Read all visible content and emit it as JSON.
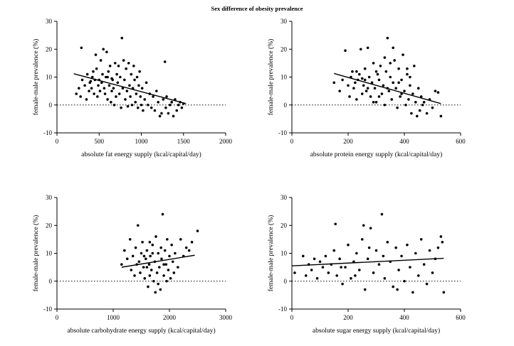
{
  "figure": {
    "title": "Sex difference of obesity prevalence"
  },
  "chart_data": [
    {
      "type": "scatter",
      "xlabel": "absolute fat energy supply (kcal/capital/day)",
      "ylabel": "female-male prevalence (%)",
      "xlim": [
        0,
        2000
      ],
      "ylim": [
        -10,
        30
      ],
      "xticks": [
        0,
        500,
        1000,
        1500,
        2000
      ],
      "yticks": [
        -10,
        0,
        10,
        20,
        30
      ],
      "reference_line": 0,
      "trend_line": [
        [
          200,
          11.2
        ],
        [
          1530,
          0.5
        ]
      ],
      "points": [
        [
          230,
          4
        ],
        [
          260,
          6
        ],
        [
          280,
          3
        ],
        [
          290,
          20.5
        ],
        [
          300,
          9
        ],
        [
          330,
          7
        ],
        [
          350,
          2
        ],
        [
          360,
          11
        ],
        [
          380,
          5
        ],
        [
          390,
          8
        ],
        [
          400,
          8.5
        ],
        [
          410,
          6
        ],
        [
          420,
          10
        ],
        [
          430,
          12
        ],
        [
          440,
          4
        ],
        [
          450,
          9
        ],
        [
          460,
          18
        ],
        [
          470,
          13
        ],
        [
          480,
          3
        ],
        [
          490,
          7
        ],
        [
          500,
          9
        ],
        [
          510,
          5
        ],
        [
          520,
          16
        ],
        [
          530,
          8
        ],
        [
          540,
          11
        ],
        [
          550,
          20
        ],
        [
          560,
          6
        ],
        [
          570,
          4
        ],
        [
          580,
          10
        ],
        [
          590,
          19
        ],
        [
          600,
          2
        ],
        [
          610,
          12
        ],
        [
          620,
          7
        ],
        [
          630,
          14
        ],
        [
          640,
          1
        ],
        [
          650,
          5
        ],
        [
          660,
          9
        ],
        [
          670,
          6
        ],
        [
          680,
          0
        ],
        [
          690,
          15
        ],
        [
          700,
          3
        ],
        [
          710,
          11
        ],
        [
          720,
          8
        ],
        [
          730,
          14
        ],
        [
          740,
          4
        ],
        [
          750,
          10
        ],
        [
          760,
          -1
        ],
        [
          770,
          24
        ],
        [
          780,
          6
        ],
        [
          790,
          16
        ],
        [
          800,
          9
        ],
        [
          810,
          2
        ],
        [
          820,
          13
        ],
        [
          830,
          5
        ],
        [
          840,
          -0.5
        ],
        [
          850,
          15
        ],
        [
          860,
          7
        ],
        [
          870,
          3
        ],
        [
          880,
          11
        ],
        [
          890,
          0
        ],
        [
          900,
          6
        ],
        [
          910,
          14
        ],
        [
          920,
          9
        ],
        [
          930,
          1
        ],
        [
          940,
          4
        ],
        [
          950,
          10
        ],
        [
          960,
          -1
        ],
        [
          970,
          7
        ],
        [
          980,
          12
        ],
        [
          990,
          3
        ],
        [
          1000,
          0
        ],
        [
          1010,
          6
        ],
        [
          1020,
          -2
        ],
        [
          1040,
          2
        ],
        [
          1060,
          8
        ],
        [
          1080,
          0
        ],
        [
          1100,
          4
        ],
        [
          1120,
          -1
        ],
        [
          1140,
          3
        ],
        [
          1160,
          -2
        ],
        [
          1180,
          5
        ],
        [
          1200,
          1
        ],
        [
          1220,
          -4
        ],
        [
          1240,
          -3
        ],
        [
          1260,
          2
        ],
        [
          1280,
          15.5
        ],
        [
          1290,
          -1
        ],
        [
          1300,
          3
        ],
        [
          1320,
          -3
        ],
        [
          1340,
          0
        ],
        [
          1360,
          1
        ],
        [
          1380,
          -4
        ],
        [
          1400,
          2
        ],
        [
          1420,
          -2
        ],
        [
          1440,
          0
        ],
        [
          1460,
          1
        ],
        [
          1480,
          -1
        ],
        [
          1500,
          0.5
        ],
        [
          650,
          9.5
        ],
        [
          600,
          10
        ]
      ]
    },
    {
      "type": "scatter",
      "xlabel": "absolute protein energy supply (kcal/capital/day)",
      "ylabel": "female-male prevalence (%)",
      "xlim": [
        0,
        600
      ],
      "ylim": [
        -10,
        30
      ],
      "xticks": [
        0,
        200,
        400,
        600
      ],
      "yticks": [
        -10,
        0,
        10,
        20,
        30
      ],
      "reference_line": 0,
      "trend_line": [
        [
          150,
          11.3
        ],
        [
          530,
          0.5
        ]
      ],
      "points": [
        [
          150,
          8
        ],
        [
          170,
          5
        ],
        [
          180,
          9
        ],
        [
          190,
          19.5
        ],
        [
          200,
          7
        ],
        [
          205,
          3
        ],
        [
          210,
          10
        ],
        [
          215,
          12
        ],
        [
          220,
          6
        ],
        [
          225,
          8
        ],
        [
          230,
          2
        ],
        [
          235,
          9
        ],
        [
          240,
          11
        ],
        [
          245,
          20
        ],
        [
          250,
          4
        ],
        [
          255,
          7
        ],
        [
          260,
          13
        ],
        [
          265,
          5
        ],
        [
          270,
          20.5
        ],
        [
          275,
          10
        ],
        [
          280,
          3
        ],
        [
          285,
          8
        ],
        [
          290,
          15
        ],
        [
          295,
          6
        ],
        [
          300,
          1
        ],
        [
          305,
          11
        ],
        [
          310,
          9
        ],
        [
          315,
          14
        ],
        [
          320,
          4
        ],
        [
          325,
          7
        ],
        [
          330,
          0
        ],
        [
          335,
          12
        ],
        [
          340,
          24
        ],
        [
          345,
          5
        ],
        [
          350,
          10
        ],
        [
          355,
          2
        ],
        [
          360,
          8
        ],
        [
          365,
          16
        ],
        [
          370,
          6
        ],
        [
          375,
          -1
        ],
        [
          380,
          13
        ],
        [
          385,
          3
        ],
        [
          390,
          9
        ],
        [
          395,
          18
        ],
        [
          400,
          5
        ],
        [
          405,
          0
        ],
        [
          410,
          11
        ],
        [
          415,
          2
        ],
        [
          420,
          7
        ],
        [
          425,
          -3
        ],
        [
          430,
          4
        ],
        [
          435,
          14
        ],
        [
          440,
          1
        ],
        [
          445,
          -4
        ],
        [
          450,
          6
        ],
        [
          455,
          -2
        ],
        [
          460,
          3
        ],
        [
          465,
          0
        ],
        [
          470,
          1
        ],
        [
          480,
          -3
        ],
        [
          490,
          2
        ],
        [
          500,
          -1
        ],
        [
          510,
          5
        ],
        [
          520,
          4.5
        ],
        [
          530,
          -4
        ],
        [
          260,
          9
        ],
        [
          300,
          12
        ],
        [
          340,
          6
        ],
        [
          380,
          8
        ],
        [
          420,
          10
        ],
        [
          230,
          12
        ],
        [
          270,
          6
        ],
        [
          310,
          3
        ],
        [
          350,
          15
        ],
        [
          390,
          4
        ],
        [
          410,
          13
        ],
        [
          360,
          20.5
        ],
        [
          290,
          1
        ],
        [
          330,
          17
        ],
        [
          250,
          9.5
        ]
      ]
    },
    {
      "type": "scatter",
      "xlabel": "absolute carbohydrate energy supply (kcal/capital/day)",
      "ylabel": "female-male prevalence (%)",
      "xlim": [
        0,
        3000
      ],
      "ylim": [
        -10,
        30
      ],
      "xticks": [
        0,
        1000,
        2000,
        3000
      ],
      "yticks": [
        -10,
        0,
        10,
        20,
        30
      ],
      "reference_line": 0,
      "trend_line": [
        [
          1150,
          5
        ],
        [
          2450,
          9.3
        ]
      ],
      "points": [
        [
          1150,
          6
        ],
        [
          1200,
          11
        ],
        [
          1250,
          8
        ],
        [
          1300,
          15
        ],
        [
          1320,
          4
        ],
        [
          1350,
          9
        ],
        [
          1380,
          2
        ],
        [
          1400,
          12
        ],
        [
          1420,
          6
        ],
        [
          1440,
          20
        ],
        [
          1460,
          7
        ],
        [
          1480,
          3
        ],
        [
          1500,
          10
        ],
        [
          1520,
          14
        ],
        [
          1540,
          5
        ],
        [
          1560,
          1
        ],
        [
          1580,
          8
        ],
        [
          1600,
          11
        ],
        [
          1620,
          -2
        ],
        [
          1640,
          6
        ],
        [
          1660,
          9
        ],
        [
          1680,
          4
        ],
        [
          1700,
          13
        ],
        [
          1720,
          0
        ],
        [
          1740,
          7
        ],
        [
          1760,
          16
        ],
        [
          1780,
          3
        ],
        [
          1800,
          10
        ],
        [
          1820,
          5
        ],
        [
          1840,
          -3
        ],
        [
          1860,
          8
        ],
        [
          1880,
          24
        ],
        [
          1900,
          2
        ],
        [
          1920,
          11
        ],
        [
          1940,
          6
        ],
        [
          1960,
          15
        ],
        [
          1980,
          4
        ],
        [
          2000,
          9
        ],
        [
          2020,
          1
        ],
        [
          2040,
          13
        ],
        [
          2060,
          7
        ],
        [
          2080,
          3
        ],
        [
          2100,
          10
        ],
        [
          2150,
          5
        ],
        [
          2200,
          15
        ],
        [
          2250,
          9
        ],
        [
          2300,
          12
        ],
        [
          2350,
          11
        ],
        [
          2400,
          14
        ],
        [
          2500,
          18
        ],
        [
          1550,
          9
        ],
        [
          1650,
          2
        ],
        [
          1750,
          -4
        ],
        [
          1850,
          12
        ],
        [
          1950,
          0
        ],
        [
          1600,
          5
        ],
        [
          1700,
          10
        ],
        [
          1800,
          -1
        ],
        [
          1900,
          6
        ],
        [
          1650,
          14
        ]
      ]
    },
    {
      "type": "scatter",
      "xlabel": "absolute sugar energy supply (kcal/capital/day)",
      "ylabel": "female-male prevalence (%)",
      "xlim": [
        0,
        600
      ],
      "ylim": [
        -10,
        30
      ],
      "xticks": [
        0,
        200,
        400,
        600
      ],
      "yticks": [
        -10,
        0,
        10,
        20,
        30
      ],
      "reference_line": 0,
      "trend_line": [
        [
          0,
          5.5
        ],
        [
          540,
          8.2
        ]
      ],
      "points": [
        [
          10,
          3
        ],
        [
          40,
          9
        ],
        [
          50,
          2
        ],
        [
          60,
          6
        ],
        [
          70,
          4
        ],
        [
          80,
          8
        ],
        [
          90,
          1
        ],
        [
          100,
          7
        ],
        [
          110,
          5
        ],
        [
          120,
          9
        ],
        [
          130,
          3
        ],
        [
          140,
          6
        ],
        [
          150,
          11
        ],
        [
          155,
          20.5
        ],
        [
          160,
          2
        ],
        [
          170,
          8
        ],
        [
          180,
          -1
        ],
        [
          190,
          5
        ],
        [
          200,
          13
        ],
        [
          210,
          1
        ],
        [
          220,
          7
        ],
        [
          230,
          10
        ],
        [
          240,
          4
        ],
        [
          250,
          15
        ],
        [
          255,
          20
        ],
        [
          260,
          -3
        ],
        [
          270,
          8
        ],
        [
          280,
          19
        ],
        [
          290,
          3
        ],
        [
          300,
          11
        ],
        [
          310,
          6
        ],
        [
          320,
          24
        ],
        [
          330,
          1
        ],
        [
          340,
          14
        ],
        [
          350,
          7
        ],
        [
          360,
          -2
        ],
        [
          370,
          12
        ],
        [
          380,
          4
        ],
        [
          390,
          9
        ],
        [
          400,
          0
        ],
        [
          410,
          13
        ],
        [
          420,
          5
        ],
        [
          430,
          -4
        ],
        [
          440,
          10
        ],
        [
          450,
          2
        ],
        [
          460,
          15
        ],
        [
          470,
          6
        ],
        [
          480,
          -1
        ],
        [
          490,
          11
        ],
        [
          500,
          3
        ],
        [
          510,
          8
        ],
        [
          520,
          12
        ],
        [
          530,
          16
        ],
        [
          535,
          14
        ],
        [
          540,
          -4
        ],
        [
          175,
          5
        ],
        [
          225,
          2
        ],
        [
          275,
          12
        ],
        [
          325,
          9
        ],
        [
          375,
          -3
        ]
      ]
    }
  ]
}
